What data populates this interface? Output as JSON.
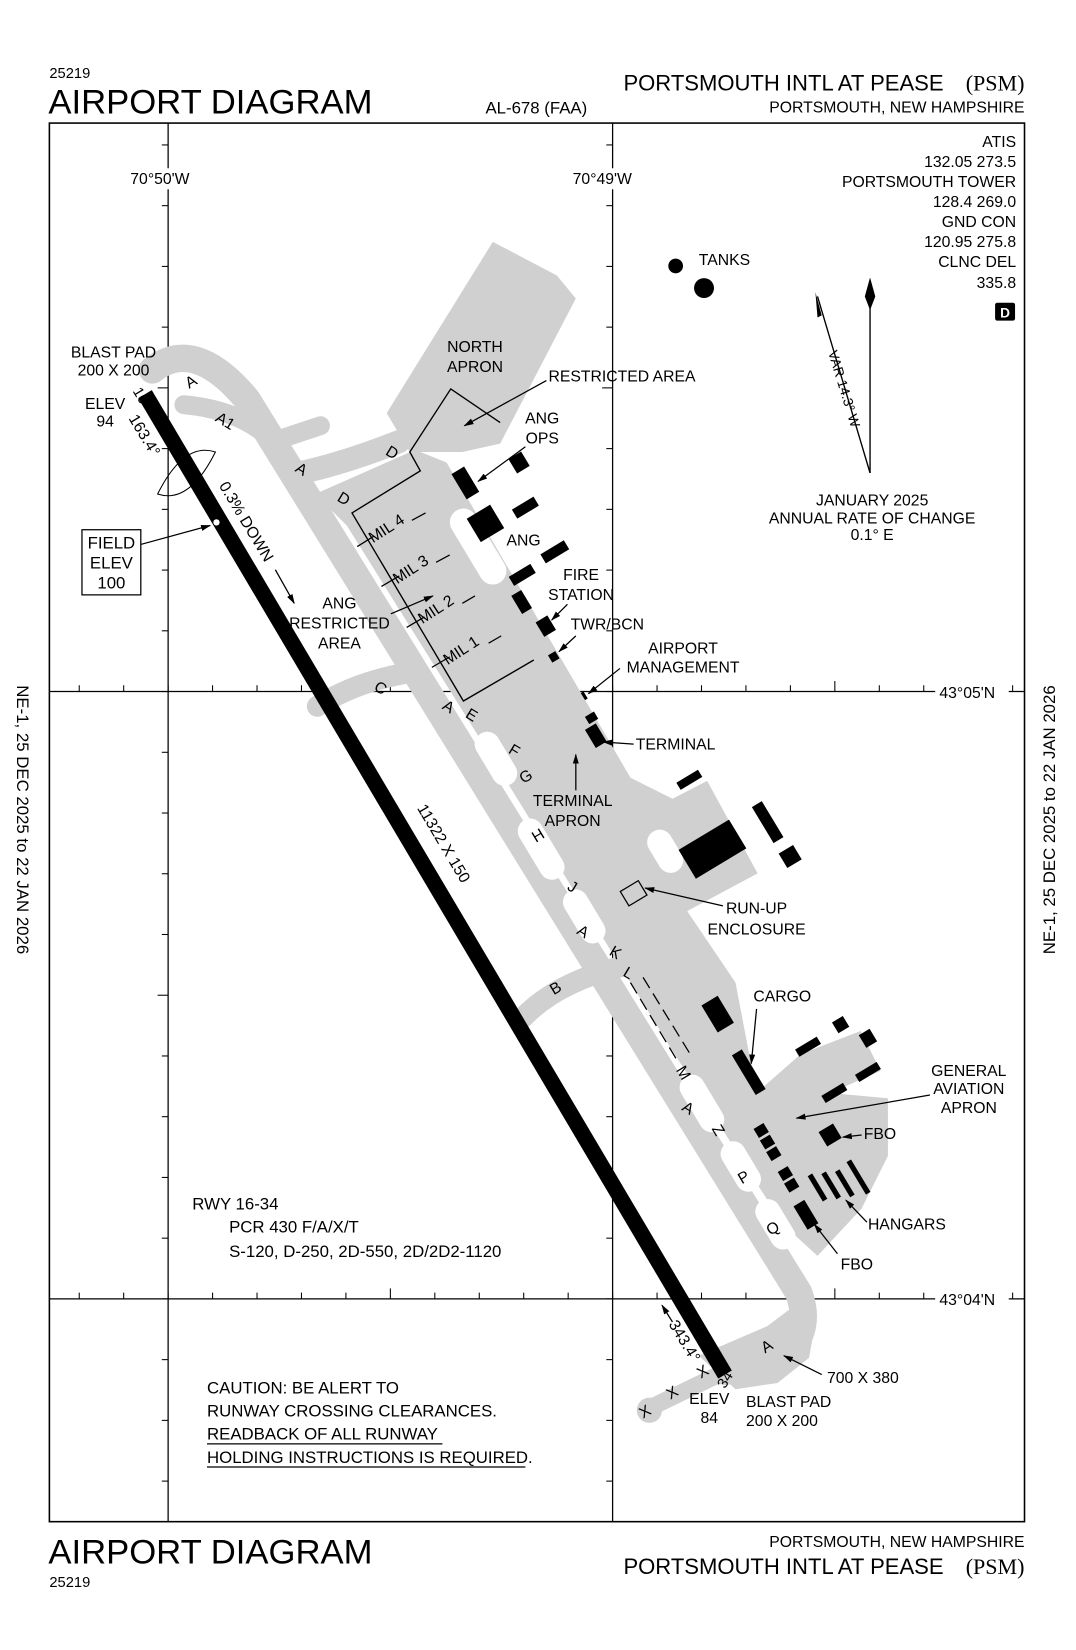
{
  "header": {
    "chart_number": "25219",
    "title": "AIRPORT DIAGRAM",
    "al_number": "AL-678 (FAA)",
    "airport_name": "PORTSMOUTH INTL AT PEASE",
    "airport_id": "(PSM)",
    "city_state": "PORTSMOUTH, NEW HAMPSHIRE"
  },
  "footer": {
    "title": "AIRPORT DIAGRAM",
    "chart_number": "25219",
    "city_state": "PORTSMOUTH, NEW HAMPSHIRE",
    "airport_name": "PORTSMOUTH INTL AT PEASE",
    "airport_id": "(PSM)"
  },
  "effective_dates": "NE-1,  25 DEC 2025  to  22 JAN 2026",
  "coordinates": {
    "lon_west": "70°50'W",
    "lon_east": "70°49'W",
    "lat_north": "43°05'N",
    "lat_south": "43°04'N"
  },
  "frequencies": [
    {
      "label": "ATIS",
      "values": "132.05  273.5"
    },
    {
      "label": "PORTSMOUTH TOWER",
      "values": "128.4  269.0"
    },
    {
      "label": "GND CON",
      "values": "120.95  275.8"
    },
    {
      "label": "CLNC DEL",
      "values": "335.8"
    }
  ],
  "d_symbol": "D",
  "magnetic": {
    "variation": "VAR 14.3° W",
    "date": "JANUARY 2025",
    "rate_label": "ANNUAL RATE OF CHANGE",
    "rate": "0.1° E"
  },
  "runway": {
    "dimensions": "11322 X 150",
    "north_end": {
      "number": "16",
      "heading": "163.4°",
      "elev_label": "ELEV",
      "elev": "94",
      "blast_pad": "BLAST PAD",
      "blast_pad_size": "200 X 200"
    },
    "south_end": {
      "number": "34",
      "heading": "343.4°",
      "elev_label": "ELEV",
      "elev": "84",
      "blast_pad": "BLAST PAD",
      "blast_pad_size": "200 X 200",
      "pad_size": "700 X 380"
    },
    "gradient": "0.3% DOWN",
    "field_elev": [
      "FIELD",
      "ELEV",
      "100"
    ],
    "info": [
      "RWY 16-34",
      "PCR 430 F/A/X/T",
      "S-120, D-250, 2D-550, 2D/2D2-1120"
    ]
  },
  "caution": [
    "CAUTION: BE ALERT TO",
    "RUNWAY CROSSING CLEARANCES.",
    "READBACK OF ALL RUNWAY",
    "HOLDING INSTRUCTIONS IS REQUIRED."
  ],
  "taxiways": {
    "a": "A",
    "a1": "A1",
    "b": "B",
    "c": "C",
    "d": "D",
    "e": "E",
    "f": "F",
    "g": "G",
    "h": "H",
    "j": "J",
    "k": "K",
    "l": "L",
    "m": "M",
    "z": "Z",
    "p": "P",
    "q": "Q",
    "x": "X"
  },
  "areas": {
    "tanks": "TANKS",
    "north_apron": [
      "NORTH",
      "APRON"
    ],
    "restricted_area": "RESTRICTED AREA",
    "ang_ops": [
      "ANG",
      "OPS"
    ],
    "ang": "ANG",
    "fire_station": [
      "FIRE",
      "STATION"
    ],
    "twr_bcn": "TWR/BCN",
    "airport_management": [
      "AIRPORT",
      "MANAGEMENT"
    ],
    "ang_restricted": [
      "ANG",
      "RESTRICTED",
      "AREA"
    ],
    "mil": [
      "MIL 1",
      "MIL 2",
      "MIL 3",
      "MIL 4"
    ],
    "terminal": "TERMINAL",
    "terminal_apron": [
      "TERMINAL",
      "APRON"
    ],
    "run_up": [
      "RUN-UP",
      "ENCLOSURE"
    ],
    "cargo": "CARGO",
    "ga_apron": [
      "GENERAL",
      "AVIATION",
      "APRON"
    ],
    "fbo": "FBO",
    "hangars": "HANGARS"
  }
}
